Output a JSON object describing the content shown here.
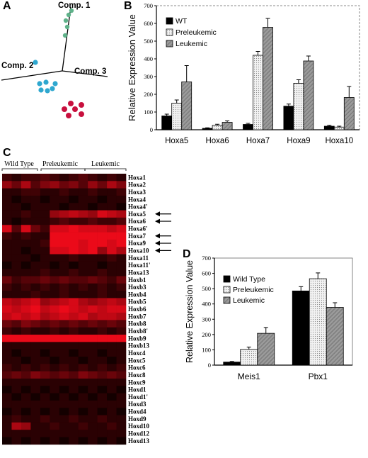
{
  "panels": {
    "a": "A",
    "b": "B",
    "c": "C",
    "d": "D"
  },
  "pca": {
    "axis_labels": {
      "comp1": "Comp. 1",
      "comp2": "Comp. 2",
      "comp3": "Comp. 3"
    },
    "colors": {
      "green": "#5fb28a",
      "blue": "#2ea7cf",
      "red": "#c8103e"
    }
  },
  "chart_data": [
    {
      "type": "bar",
      "panel": "B",
      "ylabel": "Relative Expression Value",
      "ylim": [
        0,
        700
      ],
      "yticks": [
        0,
        100,
        200,
        300,
        400,
        500,
        600,
        700
      ],
      "categories": [
        "Hoxa5",
        "Hoxa6",
        "Hoxa7",
        "Hoxa9",
        "Hoxa10"
      ],
      "series": [
        {
          "name": "WT",
          "values": [
            78,
            8,
            30,
            133,
            20
          ],
          "errors": [
            10,
            3,
            6,
            12,
            5
          ],
          "color": "#000000"
        },
        {
          "name": "Preleukemic",
          "values": [
            150,
            25,
            420,
            262,
            15
          ],
          "errors": [
            18,
            6,
            22,
            20,
            5
          ],
          "color": "#dcdcdc"
        },
        {
          "name": "Leukemic",
          "values": [
            270,
            42,
            578,
            388,
            182
          ],
          "errors": [
            92,
            8,
            50,
            28,
            62
          ],
          "color": "#8e8e8e"
        }
      ],
      "grid": false,
      "legend": "top-left"
    },
    {
      "type": "bar",
      "panel": "D",
      "ylabel": "Relative Expression Value",
      "ylim": [
        0,
        700
      ],
      "yticks": [
        0,
        100,
        200,
        300,
        400,
        500,
        600,
        700
      ],
      "categories": [
        "Meis1",
        "Pbx1"
      ],
      "series": [
        {
          "name": "Wild Type",
          "values": [
            20,
            485
          ],
          "errors": [
            4,
            28
          ],
          "color": "#000000"
        },
        {
          "name": "Preleukemic",
          "values": [
            103,
            565
          ],
          "errors": [
            15,
            38
          ],
          "color": "#dcdcdc"
        },
        {
          "name": "Leukemic",
          "values": [
            208,
            378
          ],
          "errors": [
            38,
            30
          ],
          "color": "#8e8e8e"
        }
      ],
      "grid": false,
      "legend": "top-left"
    },
    {
      "type": "heatmap",
      "panel": "C",
      "groups": [
        "Wild Type",
        "Preleukemic",
        "Leukemic"
      ],
      "rows": [
        "Hoxa1",
        "Hoxa2",
        "Hoxa3",
        "Hoxa4",
        "Hoxa4'",
        "Hoxa5",
        "Hoxa6",
        "Hoxa6'",
        "Hoxa7",
        "Hoxa9",
        "Hoxa10",
        "Hoxa11",
        "Hoxa11'",
        "Hoxa13",
        "Hoxb1",
        "Hoxb3",
        "Hoxb4",
        "Hoxb5",
        "Hoxb6",
        "Hoxb7",
        "Hoxb8",
        "Hoxb8'",
        "Hoxb9",
        "Hoxb13",
        "Hoxc4",
        "Hoxc5",
        "Hoxc6",
        "Hoxc8",
        "Hoxc9",
        "Hoxd1",
        "Hoxd1'",
        "Hoxd3",
        "Hoxd4",
        "Hoxd9",
        "Hoxd10",
        "Hoxd12",
        "Hoxd13"
      ],
      "arrow_rows": [
        "Hoxa5",
        "Hoxa6",
        "Hoxa7",
        "Hoxa9",
        "Hoxa10"
      ],
      "values": [
        [
          0.2,
          0.1,
          0.2,
          0.2,
          0.3,
          0.2,
          0.1,
          0.2,
          0.3,
          0.2,
          0.1,
          0.2,
          0.1
        ],
        [
          0.6,
          0.4,
          0.7,
          0.3,
          0.5,
          0.6,
          0.4,
          0.5,
          0.3,
          0.6,
          0.4,
          0.7,
          0.5
        ],
        [
          0.1,
          0.1,
          0.2,
          0.2,
          0.1,
          0.1,
          0.2,
          0.1,
          0.1,
          0.2,
          0.1,
          0.1,
          0.2
        ],
        [
          0.1,
          0.0,
          0.1,
          0.1,
          0.0,
          0.1,
          0.1,
          0.0,
          0.1,
          0.1,
          0.0,
          0.1,
          0.1
        ],
        [
          0.1,
          0.1,
          0.0,
          0.1,
          0.1,
          0.1,
          0.0,
          0.1,
          0.1,
          0.0,
          0.1,
          0.1,
          0.0
        ],
        [
          0.1,
          0.1,
          0.2,
          0.1,
          0.1,
          0.6,
          0.7,
          0.8,
          0.7,
          0.6,
          0.9,
          0.8,
          0.7
        ],
        [
          0.1,
          0.0,
          0.1,
          0.1,
          0.1,
          0.2,
          0.3,
          0.2,
          0.2,
          0.3,
          0.2,
          0.2,
          0.3
        ],
        [
          0.9,
          0.3,
          0.9,
          0.4,
          0.2,
          0.9,
          0.9,
          1.0,
          0.9,
          0.9,
          0.9,
          0.8,
          0.9
        ],
        [
          0.2,
          0.1,
          0.2,
          0.1,
          0.1,
          1.0,
          1.0,
          1.0,
          1.0,
          1.0,
          1.0,
          1.0,
          1.0
        ],
        [
          0.1,
          0.1,
          0.1,
          0.1,
          0.2,
          1.0,
          1.0,
          1.0,
          0.9,
          1.0,
          1.0,
          0.9,
          1.0
        ],
        [
          0.1,
          0.1,
          0.0,
          0.1,
          0.1,
          0.9,
          0.9,
          1.0,
          0.9,
          1.0,
          0.6,
          0.9,
          0.7
        ],
        [
          0.1,
          0.1,
          0.1,
          0.0,
          0.1,
          0.1,
          0.1,
          0.2,
          0.1,
          0.1,
          0.1,
          0.2,
          0.1
        ],
        [
          0.0,
          0.1,
          0.0,
          0.1,
          0.1,
          0.0,
          0.1,
          0.0,
          0.1,
          0.1,
          0.0,
          0.1,
          0.1
        ],
        [
          0.1,
          0.1,
          0.1,
          0.1,
          0.2,
          0.1,
          0.1,
          0.2,
          0.1,
          0.1,
          0.2,
          0.1,
          0.1
        ],
        [
          0.4,
          0.2,
          0.3,
          0.3,
          0.4,
          0.3,
          0.4,
          0.3,
          0.3,
          0.4,
          0.3,
          0.2,
          0.4
        ],
        [
          0.2,
          0.1,
          0.2,
          0.1,
          0.2,
          0.1,
          0.2,
          0.1,
          0.2,
          0.1,
          0.2,
          0.1,
          0.2
        ],
        [
          0.1,
          0.1,
          0.1,
          0.2,
          0.1,
          0.1,
          0.2,
          0.1,
          0.1,
          0.1,
          0.2,
          0.1,
          0.1
        ],
        [
          0.8,
          0.7,
          0.8,
          0.9,
          0.6,
          0.7,
          0.8,
          0.9,
          0.7,
          0.6,
          0.7,
          0.8,
          0.7
        ],
        [
          0.9,
          0.8,
          0.9,
          1.0,
          0.8,
          0.9,
          1.0,
          0.9,
          0.8,
          0.9,
          0.8,
          0.9,
          0.9
        ],
        [
          0.8,
          0.9,
          0.8,
          0.9,
          0.7,
          0.8,
          0.9,
          0.8,
          0.9,
          0.7,
          0.8,
          0.8,
          0.7
        ],
        [
          0.4,
          0.3,
          0.5,
          0.4,
          0.3,
          0.4,
          0.3,
          0.4,
          0.3,
          0.4,
          0.3,
          0.4,
          0.3
        ],
        [
          0.2,
          0.1,
          0.2,
          0.1,
          0.1,
          0.2,
          0.1,
          0.2,
          0.1,
          0.1,
          0.2,
          0.1,
          0.2
        ],
        [
          1.0,
          1.0,
          1.0,
          1.0,
          1.0,
          1.0,
          1.0,
          1.0,
          1.0,
          1.0,
          1.0,
          1.0,
          1.0
        ],
        [
          0.1,
          0.1,
          0.1,
          0.1,
          0.1,
          0.1,
          0.1,
          0.1,
          0.1,
          0.1,
          0.1,
          0.1,
          0.1
        ],
        [
          0.1,
          0.0,
          0.1,
          0.1,
          0.0,
          0.1,
          0.1,
          0.0,
          0.1,
          0.1,
          0.0,
          0.1,
          0.1
        ],
        [
          0.1,
          0.1,
          0.0,
          0.1,
          0.1,
          0.0,
          0.1,
          0.1,
          0.0,
          0.1,
          0.1,
          0.0,
          0.1
        ],
        [
          0.2,
          0.1,
          0.2,
          0.1,
          0.2,
          0.1,
          0.2,
          0.1,
          0.2,
          0.1,
          0.2,
          0.1,
          0.2
        ],
        [
          0.3,
          0.4,
          0.3,
          0.5,
          0.4,
          0.3,
          0.4,
          0.3,
          0.5,
          0.4,
          0.3,
          0.4,
          0.3
        ],
        [
          0.1,
          0.1,
          0.1,
          0.1,
          0.1,
          0.1,
          0.1,
          0.1,
          0.1,
          0.1,
          0.1,
          0.1,
          0.1
        ],
        [
          0.0,
          0.1,
          0.0,
          0.1,
          0.0,
          0.1,
          0.0,
          0.1,
          0.0,
          0.1,
          0.0,
          0.1,
          0.0
        ],
        [
          0.1,
          0.0,
          0.1,
          0.0,
          0.1,
          0.0,
          0.1,
          0.0,
          0.1,
          0.0,
          0.1,
          0.0,
          0.1
        ],
        [
          0.1,
          0.1,
          0.1,
          0.1,
          0.1,
          0.1,
          0.1,
          0.1,
          0.1,
          0.1,
          0.1,
          0.1,
          0.1
        ],
        [
          0.0,
          0.1,
          0.0,
          0.1,
          0.0,
          0.1,
          0.0,
          0.1,
          0.0,
          0.1,
          0.0,
          0.1,
          0.0
        ],
        [
          0.1,
          0.2,
          0.1,
          0.1,
          0.2,
          0.1,
          0.1,
          0.2,
          0.1,
          0.1,
          0.2,
          0.1,
          0.1
        ],
        [
          0.1,
          0.7,
          0.6,
          0.1,
          0.1,
          0.2,
          0.1,
          0.1,
          0.2,
          0.1,
          0.1,
          0.2,
          0.1
        ],
        [
          0.1,
          0.1,
          0.1,
          0.1,
          0.1,
          0.1,
          0.1,
          0.1,
          0.1,
          0.1,
          0.1,
          0.1,
          0.1
        ],
        [
          0.0,
          0.1,
          0.0,
          0.1,
          0.0,
          0.1,
          0.0,
          0.1,
          0.0,
          0.1,
          0.0,
          0.1,
          0.0
        ]
      ]
    }
  ]
}
